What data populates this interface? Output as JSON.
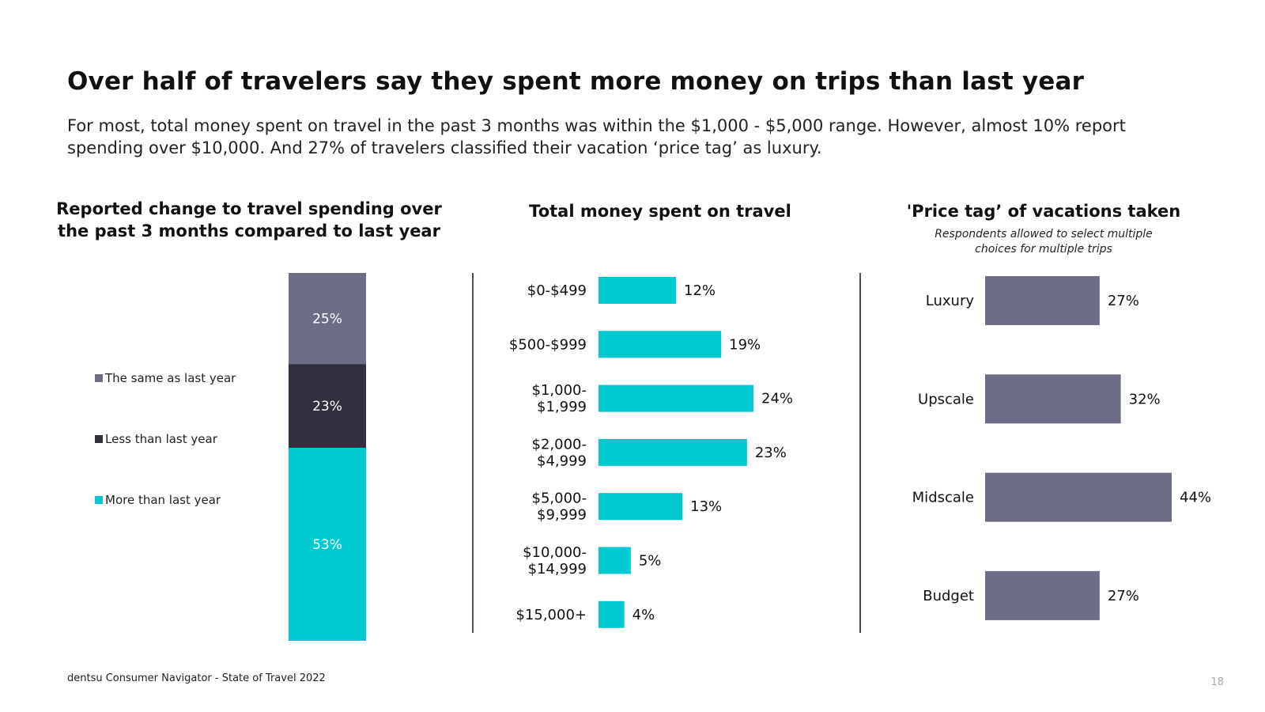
{
  "slide": {
    "title": "Over half of travelers say they spent more money on trips than last year",
    "subtitle": "For most, total money spent on travel in the past 3 months was within the $1,000 - $5,000 range. However, almost 10% report spending over $10,000. And 27% of travelers classified their vacation ‘price tag’ as luxury.",
    "footer": "dentsu Consumer Navigator - State of Travel 2022",
    "page_number": "18"
  },
  "chart_data": [
    {
      "type": "bar",
      "orientation": "vertical-stacked",
      "title": "Reported change to travel spending over the past 3 months compared to last year",
      "legend_position": "left",
      "categories": [
        ""
      ],
      "series": [
        {
          "name": "More than last year",
          "values": [
            53
          ],
          "label": "53%",
          "color": "#00c9d0"
        },
        {
          "name": "Less than last year",
          "values": [
            23
          ],
          "label": "23%",
          "color": "#30303e"
        },
        {
          "name": "The same as last year",
          "values": [
            25
          ],
          "label": "25%",
          "color": "#6d6d86"
        }
      ],
      "legend_order": [
        "The same as last year",
        "Less than last year",
        "More than last year"
      ]
    },
    {
      "type": "bar",
      "orientation": "horizontal",
      "title": "Total money spent on travel",
      "color": "#00c9d0",
      "categories": [
        [
          "$0-$499"
        ],
        [
          "$500-$999"
        ],
        [
          "$1,000-",
          "$1,999"
        ],
        [
          "$2,000-",
          "$4,999"
        ],
        [
          "$5,000-",
          "$9,999"
        ],
        [
          "$10,000-",
          "$14,999"
        ],
        [
          "$15,000+"
        ]
      ],
      "values": [
        12,
        19,
        24,
        23,
        13,
        5,
        4
      ],
      "labels": [
        "12%",
        "19%",
        "24%",
        "23%",
        "13%",
        "5%",
        "4%"
      ]
    },
    {
      "type": "bar",
      "orientation": "horizontal",
      "title": "'Price tag’ of vacations taken",
      "note": "Respondents allowed to select multiple choices for multiple trips",
      "color": "#6d6d86",
      "categories": [
        "Luxury",
        "Upscale",
        "Midscale",
        "Budget"
      ],
      "values": [
        27,
        32,
        44,
        27
      ],
      "labels": [
        "27%",
        "32%",
        "44%",
        "27%"
      ]
    }
  ]
}
